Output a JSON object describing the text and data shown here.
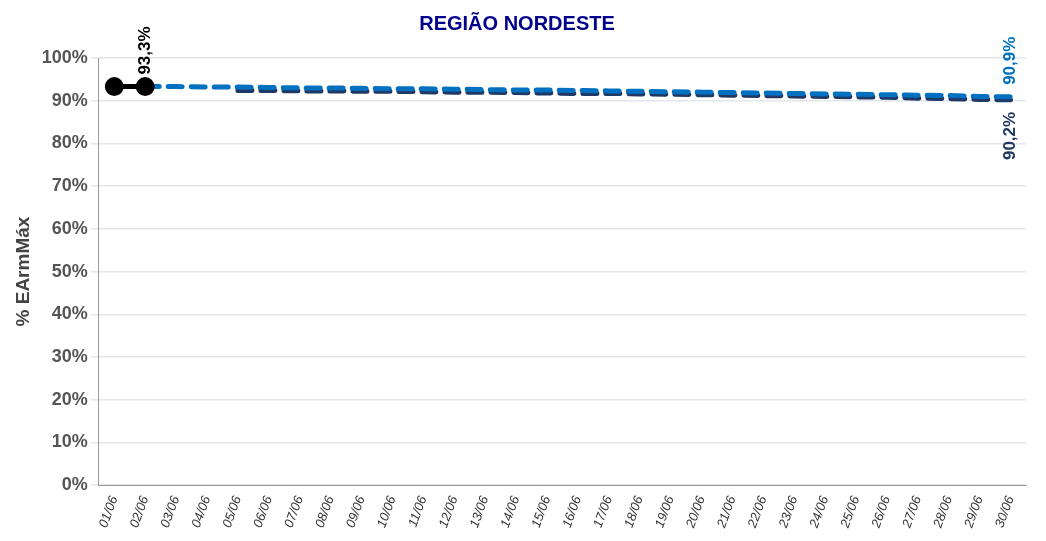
{
  "chart_data": {
    "type": "line",
    "title": "REGIÃO NORDESTE",
    "ylabel": "% EArmMáx",
    "categories": [
      "01/06",
      "02/06",
      "03/06",
      "04/06",
      "05/06",
      "06/06",
      "07/06",
      "08/06",
      "09/06",
      "10/06",
      "11/06",
      "12/06",
      "13/06",
      "14/06",
      "15/06",
      "16/06",
      "17/06",
      "18/06",
      "19/06",
      "20/06",
      "21/06",
      "22/06",
      "23/06",
      "24/06",
      "25/06",
      "26/06",
      "27/06",
      "28/06",
      "29/06",
      "30/06"
    ],
    "ylim": [
      0,
      100
    ],
    "yticks": [
      {
        "value": 0,
        "label": "0%"
      },
      {
        "value": 10,
        "label": "10%"
      },
      {
        "value": 20,
        "label": "20%"
      },
      {
        "value": 30,
        "label": "30%"
      },
      {
        "value": 40,
        "label": "40%"
      },
      {
        "value": 50,
        "label": "50%"
      },
      {
        "value": 60,
        "label": "60%"
      },
      {
        "value": 70,
        "label": "70%"
      },
      {
        "value": 80,
        "label": "80%"
      },
      {
        "value": 90,
        "label": "90%"
      },
      {
        "value": 100,
        "label": "100%"
      }
    ],
    "grid": "y",
    "legend": false,
    "series": [
      {
        "color": "#000000",
        "marker": "circle",
        "line_style": "solid",
        "values": [
          93.3,
          93.3,
          null,
          null,
          null,
          null,
          null,
          null,
          null,
          null,
          null,
          null,
          null,
          null,
          null,
          null,
          null,
          null,
          null,
          null,
          null,
          null,
          null,
          null,
          null,
          null,
          null,
          null,
          null,
          null
        ],
        "value_labels": [
          null,
          "93,3%",
          null,
          null,
          null,
          null,
          null,
          null,
          null,
          null,
          null,
          null,
          null,
          null,
          null,
          null,
          null,
          null,
          null,
          null,
          null,
          null,
          null,
          null,
          null,
          null,
          null,
          null,
          null,
          null
        ]
      },
      {
        "color": "#0070c0",
        "marker": "none",
        "line_style": "dashed",
        "values": [
          null,
          93.3,
          93.3,
          93.2,
          93.2,
          93.1,
          93.0,
          93.0,
          92.9,
          92.8,
          92.8,
          92.7,
          92.6,
          92.5,
          92.5,
          92.4,
          92.3,
          92.2,
          92.1,
          92.0,
          91.9,
          91.8,
          91.7,
          91.6,
          91.5,
          91.4,
          91.3,
          91.2,
          91.0,
          90.9
        ],
        "value_labels": [
          null,
          null,
          null,
          null,
          null,
          null,
          null,
          null,
          null,
          null,
          null,
          null,
          null,
          null,
          null,
          null,
          null,
          null,
          null,
          null,
          null,
          null,
          null,
          null,
          null,
          null,
          null,
          null,
          null,
          "90,9%"
        ]
      },
      {
        "color": "#1f3864",
        "marker": "none",
        "line_style": "dashed",
        "values": [
          null,
          null,
          null,
          null,
          92.4,
          92.4,
          92.3,
          92.3,
          92.2,
          92.2,
          92.1,
          92.0,
          92.0,
          91.9,
          91.8,
          91.7,
          91.7,
          91.6,
          91.5,
          91.4,
          91.3,
          91.2,
          91.1,
          91.0,
          90.9,
          90.8,
          90.6,
          90.5,
          90.3,
          90.2
        ],
        "value_labels": [
          null,
          null,
          null,
          null,
          null,
          null,
          null,
          null,
          null,
          null,
          null,
          null,
          null,
          null,
          null,
          null,
          null,
          null,
          null,
          null,
          null,
          null,
          null,
          null,
          null,
          null,
          null,
          null,
          null,
          "90,2%"
        ]
      }
    ]
  }
}
